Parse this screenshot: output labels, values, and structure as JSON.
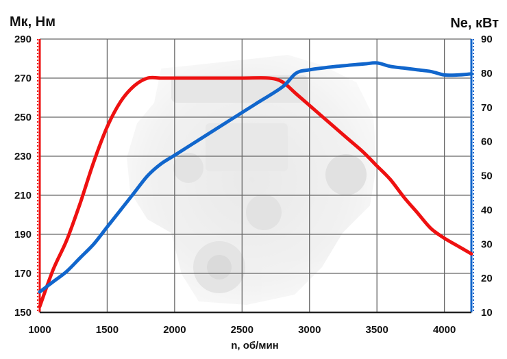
{
  "chart_data": {
    "type": "line",
    "xlabel": "n, об/мин",
    "ylabel_left": "Мк, Нм",
    "ylabel_right": "Ne, кВт",
    "xlim": [
      1000,
      4200
    ],
    "ylim_left": [
      150,
      290
    ],
    "ylim_right": [
      10,
      90
    ],
    "x_ticks": [
      "1000",
      "1500",
      "2000",
      "2500",
      "3000",
      "3500",
      "4000"
    ],
    "y_left_ticks": [
      "150",
      "170",
      "190",
      "210",
      "230",
      "250",
      "270",
      "290"
    ],
    "y_right_ticks": [
      "10",
      "20",
      "30",
      "40",
      "50",
      "60",
      "70",
      "80",
      "90"
    ],
    "grid": true,
    "colors": {
      "torque": "#ee1111",
      "power": "#1166cc",
      "grid": "#666666"
    },
    "series": [
      {
        "key": "torque",
        "axis": "left",
        "points": [
          [
            1000,
            153
          ],
          [
            1100,
            172
          ],
          [
            1200,
            187
          ],
          [
            1300,
            206
          ],
          [
            1400,
            227
          ],
          [
            1500,
            245
          ],
          [
            1600,
            258
          ],
          [
            1700,
            266
          ],
          [
            1800,
            270
          ],
          [
            1900,
            270
          ],
          [
            2000,
            270
          ],
          [
            2250,
            270
          ],
          [
            2500,
            270
          ],
          [
            2700,
            270
          ],
          [
            2800,
            268
          ],
          [
            2900,
            262
          ],
          [
            3000,
            256
          ],
          [
            3100,
            250
          ],
          [
            3200,
            244
          ],
          [
            3300,
            238
          ],
          [
            3400,
            232
          ],
          [
            3500,
            225
          ],
          [
            3600,
            218
          ],
          [
            3700,
            209
          ],
          [
            3800,
            201
          ],
          [
            3900,
            193
          ],
          [
            4000,
            188
          ],
          [
            4100,
            184
          ],
          [
            4200,
            180
          ]
        ]
      },
      {
        "key": "power",
        "axis": "right",
        "points": [
          [
            1000,
            16
          ],
          [
            1100,
            19
          ],
          [
            1200,
            22
          ],
          [
            1300,
            26
          ],
          [
            1400,
            30
          ],
          [
            1500,
            35
          ],
          [
            1600,
            40
          ],
          [
            1700,
            45
          ],
          [
            1800,
            50
          ],
          [
            1900,
            53.5
          ],
          [
            2000,
            56
          ],
          [
            2200,
            61
          ],
          [
            2400,
            66
          ],
          [
            2600,
            71
          ],
          [
            2800,
            76
          ],
          [
            2900,
            80
          ],
          [
            3000,
            81
          ],
          [
            3200,
            82
          ],
          [
            3400,
            82.7
          ],
          [
            3500,
            83
          ],
          [
            3600,
            82
          ],
          [
            3700,
            81.5
          ],
          [
            3800,
            81
          ],
          [
            3900,
            80.5
          ],
          [
            4000,
            79.5
          ],
          [
            4100,
            79.5
          ],
          [
            4200,
            79.8
          ]
        ]
      }
    ]
  }
}
